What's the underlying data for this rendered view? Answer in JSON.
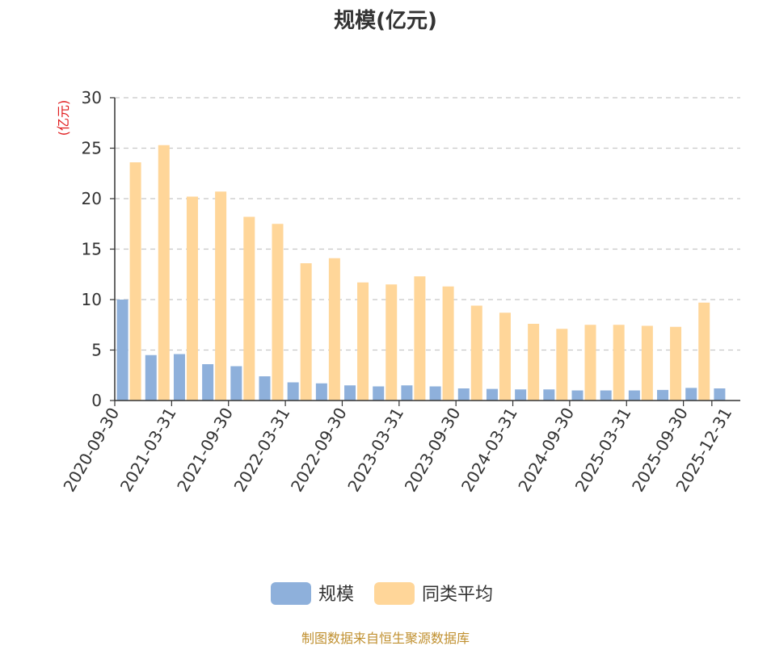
{
  "chart_data": {
    "type": "bar",
    "title": "规模(亿元)",
    "ylabel": "(亿元)",
    "ylim": [
      0,
      30
    ],
    "yticks": [
      0,
      5,
      10,
      15,
      20,
      25,
      30
    ],
    "grid": true,
    "legend_position": "bottom",
    "x_tick_labels": [
      "2020-09-30",
      "2021-03-31",
      "2021-09-30",
      "2022-03-31",
      "2022-09-30",
      "2023-03-31",
      "2023-09-30",
      "2024-03-31",
      "2024-09-30",
      "2025-03-31",
      "2025-09-30",
      "2025-12-31"
    ],
    "categories": [
      "2020-09-30",
      "2020-12-31",
      "2021-03-31",
      "2021-06-30",
      "2021-09-30",
      "2021-12-31",
      "2022-03-31",
      "2022-06-30",
      "2022-09-30",
      "2022-12-31",
      "2023-03-31",
      "2023-06-30",
      "2023-09-30",
      "2023-12-31",
      "2024-03-31",
      "2024-06-30",
      "2024-09-30",
      "2024-12-31",
      "2025-03-31",
      "2025-06-30",
      "2025-09-30",
      "2025-12-31"
    ],
    "series": [
      {
        "name": "规模",
        "color": "#8eb0db",
        "values": [
          10.0,
          4.5,
          4.6,
          3.6,
          3.4,
          2.4,
          1.8,
          1.7,
          1.5,
          1.4,
          1.5,
          1.4,
          1.2,
          1.15,
          1.1,
          1.1,
          1.0,
          1.0,
          1.0,
          1.05,
          1.25,
          1.2
        ]
      },
      {
        "name": "同类平均",
        "color": "#ffd699",
        "values": [
          23.6,
          25.3,
          20.2,
          20.7,
          18.2,
          17.5,
          13.6,
          14.1,
          11.7,
          11.5,
          12.3,
          11.3,
          9.4,
          8.7,
          7.6,
          7.1,
          7.5,
          7.5,
          7.4,
          7.3,
          9.7,
          null
        ]
      }
    ]
  },
  "footer": {
    "source": "制图数据来自恒生聚源数据库"
  }
}
